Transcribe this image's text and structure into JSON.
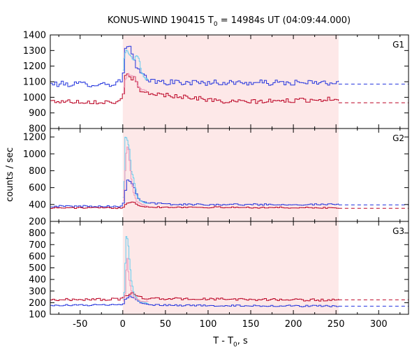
{
  "chart_data": {
    "type": "line",
    "title": {
      "prefix": "KONUS-WIND 190415 T",
      "sub": "0",
      "suffix": " = 14984s UT (04:09:44.000)"
    },
    "xlabel": {
      "prefix": "T - T",
      "sub": "0",
      "suffix": ", s"
    },
    "ylabel": "counts / sec",
    "xlim": [
      -85,
      335
    ],
    "x_ticks": [
      -50,
      0,
      50,
      100,
      150,
      200,
      250,
      300
    ],
    "shaded_interval": [
      0,
      253
    ],
    "colors": {
      "shade": "#fde8e8",
      "blue": "#2233dd",
      "red": "#bb0022",
      "cyan": "#66ccee",
      "pink": "#ee99bb"
    },
    "panels": [
      {
        "name": "G1",
        "ylim": [
          800,
          1400
        ],
        "y_ticks": [
          800,
          900,
          1000,
          1100,
          1200,
          1300,
          1400
        ],
        "series": [
          {
            "name": "blue",
            "color_key": "blue",
            "baseline": 1085,
            "x_start": -85,
            "x_end": 253,
            "points": [
              [
                -85,
                1085
              ],
              [
                -10,
                1085
              ],
              [
                0,
                1110
              ],
              [
                2,
                1260
              ],
              [
                3,
                1330
              ],
              [
                8,
                1320
              ],
              [
                12,
                1260
              ],
              [
                16,
                1190
              ],
              [
                20,
                1160
              ],
              [
                25,
                1130
              ],
              [
                30,
                1110
              ],
              [
                40,
                1100
              ],
              [
                60,
                1095
              ],
              [
                253,
                1092
              ]
            ],
            "noise": 18
          },
          {
            "name": "red",
            "color_key": "red",
            "baseline": 965,
            "x_start": -85,
            "x_end": 253,
            "points": [
              [
                -85,
                975
              ],
              [
                -10,
                970
              ],
              [
                0,
                980
              ],
              [
                2,
                1080
              ],
              [
                4,
                1160
              ],
              [
                8,
                1130
              ],
              [
                14,
                1120
              ],
              [
                18,
                1060
              ],
              [
                20,
                1035
              ],
              [
                40,
                1020
              ],
              [
                80,
                1000
              ],
              [
                120,
                970
              ],
              [
                180,
                975
              ],
              [
                253,
                990
              ]
            ],
            "noise": 14
          },
          {
            "name": "cyan",
            "color_key": "cyan",
            "x_start": 0,
            "x_end": 30,
            "points": [
              [
                0,
                1130
              ],
              [
                2,
                1270
              ],
              [
                4,
                1300
              ],
              [
                6,
                1290
              ],
              [
                10,
                1260
              ],
              [
                13,
                1230
              ],
              [
                16,
                1270
              ],
              [
                19,
                1250
              ],
              [
                22,
                1160
              ],
              [
                26,
                1120
              ],
              [
                30,
                1115
              ]
            ],
            "noise": 6
          },
          {
            "name": "pink",
            "color_key": "pink",
            "x_start": 0,
            "x_end": 28,
            "points": [
              [
                0,
                1000
              ],
              [
                3,
                1110
              ],
              [
                6,
                1150
              ],
              [
                10,
                1140
              ],
              [
                14,
                1130
              ],
              [
                18,
                1070
              ],
              [
                22,
                1050
              ],
              [
                28,
                1040
              ]
            ],
            "noise": 5
          }
        ]
      },
      {
        "name": "G2",
        "ylim": [
          200,
          1300
        ],
        "y_ticks": [
          200,
          400,
          600,
          800,
          1000,
          1200
        ],
        "series": [
          {
            "name": "blue",
            "color_key": "blue",
            "baseline": 395,
            "x_start": -85,
            "x_end": 253,
            "points": [
              [
                -85,
                380
              ],
              [
                0,
                380
              ],
              [
                2,
                470
              ],
              [
                4,
                620
              ],
              [
                6,
                700
              ],
              [
                10,
                660
              ],
              [
                14,
                600
              ],
              [
                18,
                480
              ],
              [
                22,
                440
              ],
              [
                30,
                420
              ],
              [
                60,
                400
              ],
              [
                253,
                400
              ]
            ],
            "noise": 10
          },
          {
            "name": "red",
            "color_key": "red",
            "baseline": 355,
            "x_start": -85,
            "x_end": 253,
            "points": [
              [
                -85,
                360
              ],
              [
                0,
                360
              ],
              [
                2,
                400
              ],
              [
                6,
                420
              ],
              [
                12,
                440
              ],
              [
                18,
                390
              ],
              [
                30,
                370
              ],
              [
                253,
                360
              ]
            ],
            "noise": 8
          },
          {
            "name": "cyan",
            "color_key": "cyan",
            "x_start": 0,
            "x_end": 30,
            "points": [
              [
                0,
                400
              ],
              [
                2,
                700
              ],
              [
                3,
                1200
              ],
              [
                5,
                1180
              ],
              [
                8,
                1050
              ],
              [
                10,
                800
              ],
              [
                13,
                700
              ],
              [
                16,
                520
              ],
              [
                20,
                450
              ],
              [
                25,
                420
              ],
              [
                30,
                410
              ]
            ],
            "noise": 5
          },
          {
            "name": "pink",
            "color_key": "pink",
            "x_start": 0,
            "x_end": 30,
            "points": [
              [
                0,
                380
              ],
              [
                2,
                600
              ],
              [
                4,
                1000
              ],
              [
                6,
                1110
              ],
              [
                9,
                800
              ],
              [
                12,
                560
              ],
              [
                16,
                440
              ],
              [
                22,
                400
              ],
              [
                30,
                380
              ]
            ],
            "noise": 5
          }
        ]
      },
      {
        "name": "G3",
        "ylim": [
          100,
          900
        ],
        "y_ticks": [
          100,
          200,
          300,
          400,
          500,
          600,
          700,
          800
        ],
        "series": [
          {
            "name": "red",
            "color_key": "red",
            "baseline": 225,
            "x_start": -85,
            "x_end": 253,
            "points": [
              [
                -85,
                225
              ],
              [
                0,
                230
              ],
              [
                4,
                260
              ],
              [
                10,
                290
              ],
              [
                18,
                250
              ],
              [
                30,
                235
              ],
              [
                253,
                222
              ]
            ],
            "noise": 10
          },
          {
            "name": "blue",
            "color_key": "blue",
            "baseline": 170,
            "x_start": -85,
            "x_end": 253,
            "points": [
              [
                -85,
                178
              ],
              [
                0,
                180
              ],
              [
                4,
                240
              ],
              [
                10,
                260
              ],
              [
                16,
                220
              ],
              [
                22,
                190
              ],
              [
                40,
                178
              ],
              [
                253,
                170
              ]
            ],
            "noise": 7
          },
          {
            "name": "cyan",
            "color_key": "cyan",
            "x_start": 0,
            "x_end": 30,
            "points": [
              [
                0,
                200
              ],
              [
                2,
                300
              ],
              [
                4,
                770
              ],
              [
                6,
                740
              ],
              [
                8,
                560
              ],
              [
                10,
                400
              ],
              [
                13,
                280
              ],
              [
                16,
                240
              ],
              [
                20,
                210
              ],
              [
                30,
                195
              ]
            ],
            "noise": 5
          },
          {
            "name": "pink",
            "color_key": "pink",
            "x_start": 0,
            "x_end": 30,
            "points": [
              [
                0,
                200
              ],
              [
                3,
                280
              ],
              [
                5,
                620
              ],
              [
                7,
                430
              ],
              [
                10,
                300
              ],
              [
                14,
                240
              ],
              [
                20,
                215
              ],
              [
                30,
                210
              ]
            ],
            "noise": 5
          }
        ]
      }
    ]
  }
}
